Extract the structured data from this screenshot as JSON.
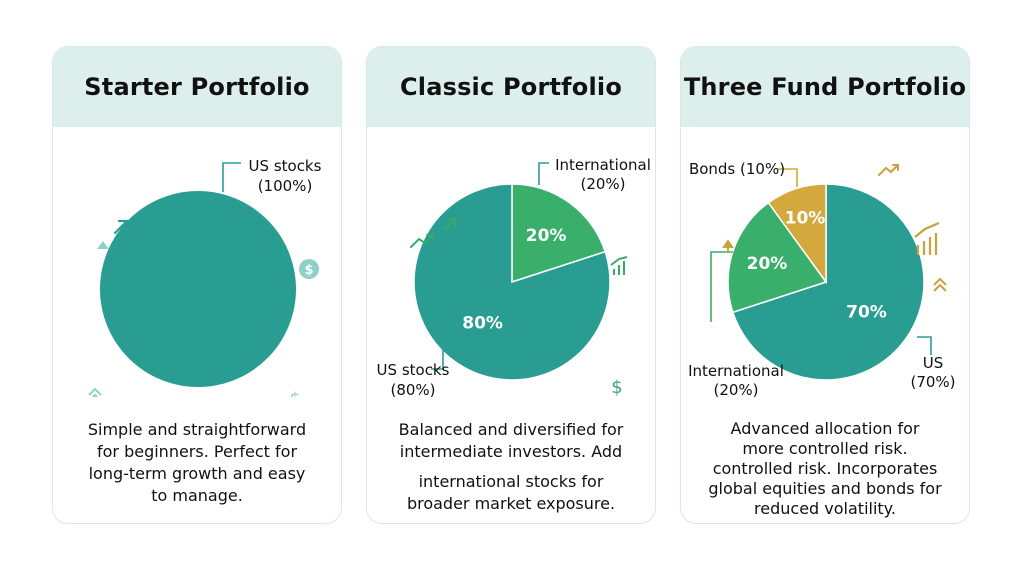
{
  "colors": {
    "teal": "#2a9d93",
    "green": "#3aae6b",
    "gold": "#d3a93e",
    "header_bg": "#dcefec",
    "border": "#d6e9e6",
    "deco_light_teal": "#8fd0c8",
    "deco_gold": "#c9a23c",
    "deco_green": "#3aa86e"
  },
  "cards": [
    {
      "title": "Starter Portfolio",
      "description": [
        "Simple and straightforward",
        "for beginners. Perfect for",
        "long-term growth and easy",
        "to manage."
      ]
    },
    {
      "title": "Classic Portfolio",
      "description": [
        "Balanced and diversified for",
        "intermediate investors. Add",
        "international stocks for",
        "broader market exposure."
      ]
    },
    {
      "title": "Three Fund Portfolio",
      "description": [
        "Advanced allocation for",
        "more controlled risk.",
        "controlled risk. Incorporates",
        "global equities and bonds for",
        "reduced volatility."
      ]
    }
  ],
  "chart_data": [
    {
      "type": "pie",
      "title": "Starter Portfolio",
      "slices": [
        {
          "label": [
            "US stocks",
            "(100%)"
          ],
          "value": 100,
          "color": "#2a9d93",
          "inner_label": ""
        }
      ]
    },
    {
      "type": "pie",
      "title": "Classic Portfolio",
      "slices": [
        {
          "label": [
            "International",
            "(20%)"
          ],
          "value": 20,
          "color": "#3aae6b",
          "inner_label": "20%"
        },
        {
          "label": [
            "US stocks",
            "(80%)"
          ],
          "value": 80,
          "color": "#2a9d93",
          "inner_label": "80%"
        }
      ]
    },
    {
      "type": "pie",
      "title": "Three Fund Portfolio",
      "slices": [
        {
          "label": [
            "US",
            "(70%)"
          ],
          "value": 70,
          "color": "#2a9d93",
          "inner_label": "70%"
        },
        {
          "label": [
            "International",
            "(20%)"
          ],
          "value": 20,
          "color": "#3aae6b",
          "inner_label": "20%"
        },
        {
          "label": [
            "Bonds (10%)"
          ],
          "value": 10,
          "color": "#d3a93e",
          "inner_label": "10%"
        }
      ]
    }
  ],
  "icons": {
    "starter": [
      "up-right-arrow-icon",
      "triangle-icon",
      "dollar-coin-icon",
      "double-chevron-up-icon",
      "dollar-sign-icon",
      "triangle-icon"
    ],
    "classic": [
      "trend-up-icon",
      "up-right-arrow-icon",
      "bar-chart-icon",
      "dollar-sign-icon",
      "dot-icon"
    ],
    "three_fund": [
      "trend-up-icon",
      "bar-chart-icon",
      "double-chevron-up-icon",
      "up-arrow-icon",
      "triangle-icon",
      "trend-up-icon"
    ]
  }
}
